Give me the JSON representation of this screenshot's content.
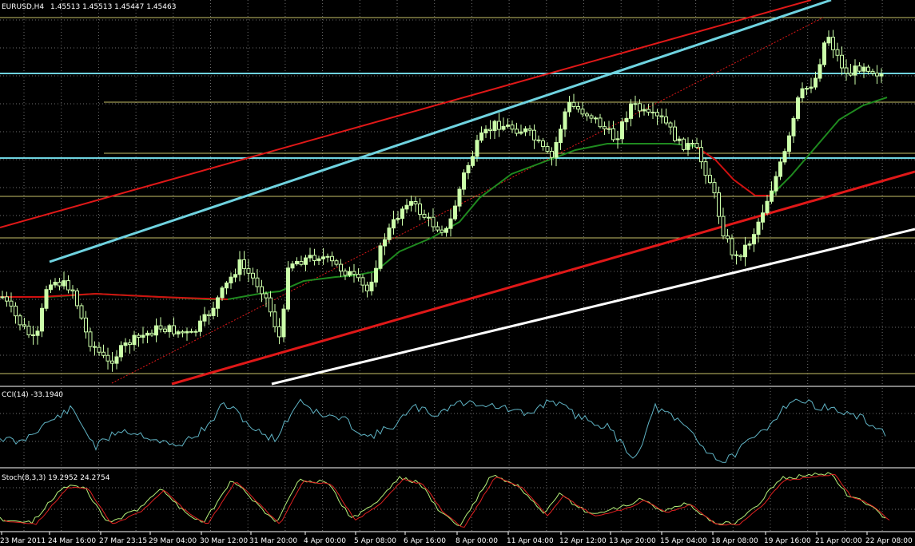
{
  "main": {
    "symbol_label": "EURUSD,H4",
    "ohlc_label": "1.45513 1.45513 1.45447 1.45463"
  },
  "cci": {
    "label": "CCI(14) -33.1940"
  },
  "stoch": {
    "label": "Stoch(8,3,3) 19.2952 24.2754"
  },
  "time_axis": [
    "23 Mar 2011",
    "24 Mar 16:00",
    "27 Mar 23:15",
    "29 Mar 04:00",
    "30 Mar 12:00",
    "31 Mar 20:00",
    "4 Apr 00:00",
    "5 Apr 08:00",
    "6 Apr 16:00",
    "8 Apr 00:00",
    "11 Apr 04:00",
    "12 Apr 12:00",
    "13 Apr 20:00",
    "15 Apr 04:00",
    "18 Apr 08:00",
    "19 Apr 16:00",
    "21 Apr 00:00",
    "22 Apr 08:00"
  ],
  "colors": {
    "background": "#000000",
    "grid": "#6e6e6e",
    "candle": "#ccffaa",
    "ma": "#1f8a1f",
    "ma_red": "#d01010",
    "channel_red": "#e01818",
    "channel_cyan": "#6fd3e0",
    "support_white": "#ffffff",
    "level_yellow": "#c8c26a",
    "level_cyan": "#6fd3e0",
    "cci_line": "#5fb3c4",
    "stoch_main": "#b5f07a",
    "stoch_signal": "#e02020"
  },
  "chart_data": [
    {
      "type": "candlestick",
      "title": "EURUSD,H4",
      "symbol": "EURUSD",
      "timeframe": "H4",
      "last_ohlc": {
        "open": 1.45513,
        "high": 1.45513,
        "low": 1.45447,
        "close": 1.45463
      },
      "x_tick_labels": [
        "23 Mar 2011",
        "24 Mar 16:00",
        "27 Mar 23:15",
        "29 Mar 04:00",
        "30 Mar 12:00",
        "31 Mar 20:00",
        "4 Apr 00:00",
        "5 Apr 08:00",
        "6 Apr 16:00",
        "8 Apr 00:00",
        "11 Apr 04:00",
        "12 Apr 12:00",
        "13 Apr 20:00",
        "15 Apr 04:00",
        "18 Apr 08:00",
        "19 Apr 16:00",
        "21 Apr 00:00",
        "22 Apr 08:00"
      ],
      "grid": true
    },
    {
      "type": "line",
      "title": "CCI(14) -33.1940",
      "indicator": "CCI",
      "period": 14,
      "last_value": -33.194,
      "grid": true
    },
    {
      "type": "line",
      "title": "Stoch(8,3,3) 19.2952 24.2754",
      "indicator": "Stochastic",
      "params": [
        8,
        3,
        3
      ],
      "series": [
        {
          "name": "main",
          "last_value": 19.2952
        },
        {
          "name": "signal",
          "last_value": 24.2754
        }
      ],
      "grid": true
    }
  ]
}
